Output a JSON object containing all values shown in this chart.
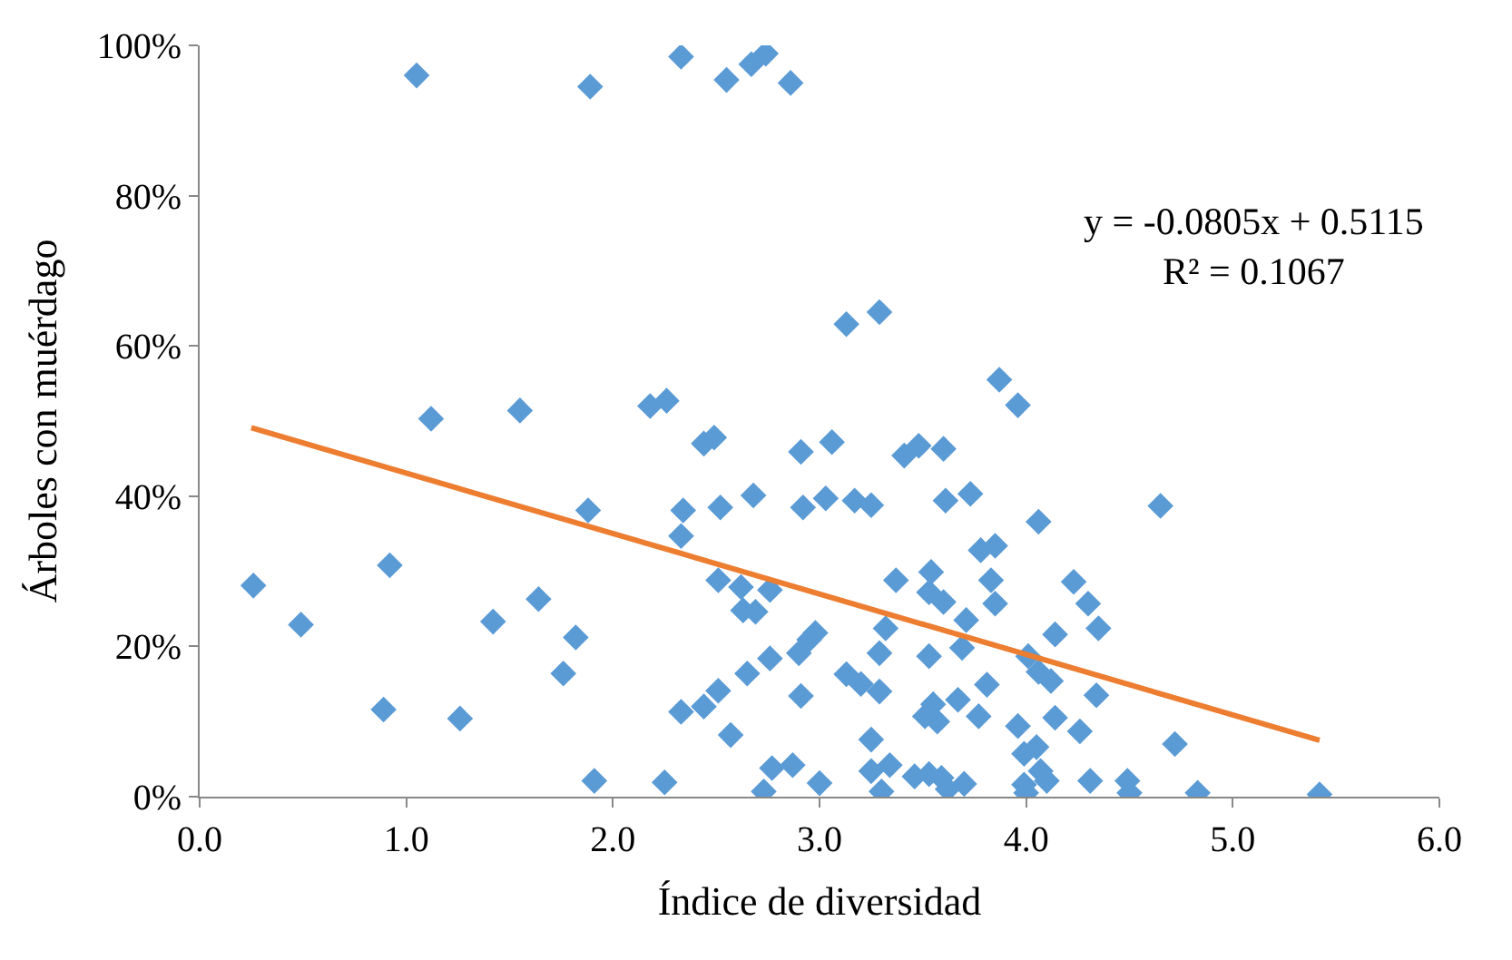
{
  "chart_data": {
    "type": "scatter",
    "xlabel": "Índice de diversidad",
    "ylabel": "Árboles con muérdago",
    "annotations": [
      "y = -0.0805x + 0.5115\nR² = 0.1067"
    ],
    "marker": "diamond",
    "grid": false,
    "xlim": [
      0,
      6
    ],
    "xticks": [
      {
        "value": 0,
        "label": "0.0"
      },
      {
        "value": 1,
        "label": "1.0"
      },
      {
        "value": 2,
        "label": "2.0"
      },
      {
        "value": 3,
        "label": "3.0"
      },
      {
        "value": 4,
        "label": "4.0"
      },
      {
        "value": 5,
        "label": "5.0"
      },
      {
        "value": 6,
        "label": "6.0"
      }
    ],
    "ylim": [
      0,
      100
    ],
    "yticks": [
      {
        "value": 0,
        "label": "0%"
      },
      {
        "value": 20,
        "label": "20%"
      },
      {
        "value": 40,
        "label": "40%"
      },
      {
        "value": 60,
        "label": "60%"
      },
      {
        "value": 80,
        "label": "80%"
      },
      {
        "value": 100,
        "label": "100%"
      }
    ],
    "series": [
      {
        "color": "#5b9bd5",
        "x": [
          0.26,
          0.49,
          0.89,
          0.92,
          1.12,
          1.26,
          1.42,
          1.55,
          1.64,
          1.76,
          1.82,
          1.88,
          1.91,
          2.18,
          2.26,
          2.25,
          2.33,
          2.34,
          2.33,
          2.44,
          2.49,
          2.44,
          2.51,
          2.52,
          2.51,
          2.57,
          2.62,
          2.63,
          2.69,
          2.68,
          2.65,
          2.76,
          2.76,
          2.77,
          2.73,
          2.87,
          2.91,
          2.92,
          2.9,
          2.95,
          2.98,
          2.91,
          3.0,
          3.03,
          3.06,
          1.05,
          1.89,
          2.33,
          2.55,
          2.67,
          2.74,
          2.86,
          3.13,
          3.29,
          3.87,
          3.96,
          3.41,
          3.48,
          3.6,
          3.17,
          3.25,
          3.61,
          3.73,
          4.06,
          4.65,
          3.78,
          3.85,
          3.83,
          3.85,
          3.37,
          3.54,
          3.53,
          3.6,
          4.23,
          4.3,
          4.35,
          4.14,
          3.71,
          3.69,
          3.32,
          3.29,
          3.53,
          4.01,
          4.06,
          4.12,
          3.81,
          3.13,
          3.2,
          3.29,
          4.34,
          3.67,
          3.55,
          3.51,
          3.57,
          3.77,
          4.14,
          3.96,
          4.26,
          3.25,
          4.72,
          3.99,
          4.05,
          3.25,
          3.34,
          3.46,
          3.53,
          3.59,
          3.62,
          3.7,
          3.99,
          4.07,
          4.1,
          4.31,
          4.49,
          4.5,
          4.83,
          5.42,
          3.3,
          4.0
        ],
        "values": [
          28.1,
          22.9,
          11.6,
          30.8,
          50.3,
          10.4,
          23.3,
          51.4,
          26.3,
          16.4,
          21.2,
          38.1,
          2.1,
          52.0,
          52.7,
          1.9,
          11.3,
          38.1,
          34.7,
          47.0,
          47.8,
          12.0,
          14.1,
          38.5,
          28.8,
          8.2,
          27.9,
          24.8,
          24.6,
          40.1,
          16.4,
          27.5,
          18.4,
          3.8,
          0.7,
          4.2,
          45.9,
          38.5,
          19.1,
          20.9,
          21.8,
          13.4,
          1.8,
          39.7,
          47.2,
          96.0,
          94.5,
          98.5,
          95.4,
          97.5,
          98.9,
          95.0,
          62.9,
          64.5,
          55.5,
          52.1,
          45.4,
          46.7,
          46.3,
          39.4,
          38.8,
          39.4,
          40.3,
          36.6,
          38.7,
          32.8,
          33.4,
          28.8,
          25.7,
          28.8,
          29.9,
          27.2,
          25.9,
          28.6,
          25.7,
          22.4,
          21.6,
          23.5,
          19.8,
          22.4,
          19.1,
          18.7,
          18.7,
          16.6,
          15.4,
          14.9,
          16.3,
          15.0,
          14.0,
          13.5,
          12.9,
          12.3,
          10.7,
          10.0,
          10.7,
          10.5,
          9.4,
          8.7,
          7.6,
          7.0,
          5.7,
          6.6,
          3.4,
          4.2,
          2.7,
          3.0,
          2.5,
          1.0,
          1.7,
          1.6,
          3.4,
          2.1,
          2.1,
          2.1,
          0.5,
          0.5,
          0.3,
          0.7,
          0.5
        ]
      },
      {
        "type": "line",
        "color": "#ed7d31",
        "x": [
          0.25,
          5.42
        ],
        "values": [
          49.1,
          7.5
        ],
        "marker": "none",
        "line_style": "solid"
      }
    ]
  }
}
